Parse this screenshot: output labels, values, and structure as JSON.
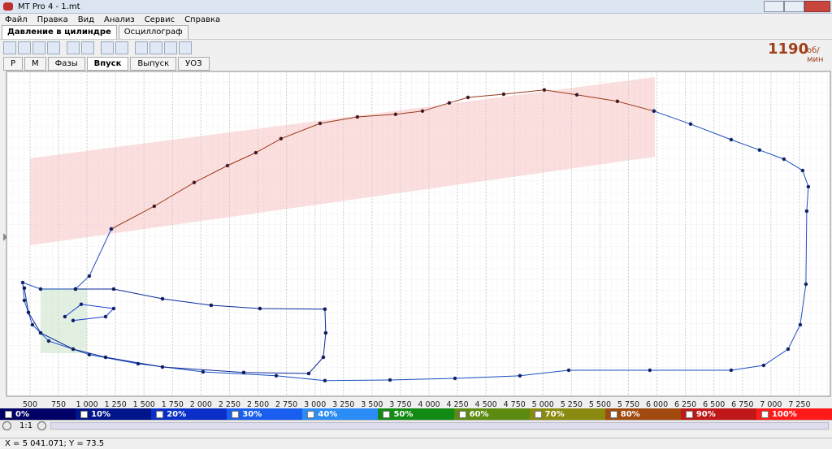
{
  "window": {
    "title": "MT Pro 4 - 1.mt"
  },
  "menu": [
    "Файл",
    "Правка",
    "Вид",
    "Анализ",
    "Сервис",
    "Справка"
  ],
  "tabs": [
    "Давление в цилиндре",
    "Осциллограф"
  ],
  "rpm": {
    "value": "1190",
    "unit": "об/мин"
  },
  "subtabs": [
    "P",
    "M",
    "Фазы",
    "Впуск",
    "Выпуск",
    "УОЗ"
  ],
  "legend": [
    {
      "label": "0%",
      "color": "#000066"
    },
    {
      "label": "10%",
      "color": "#00158a"
    },
    {
      "label": "20%",
      "color": "#0a2fc8"
    },
    {
      "label": "30%",
      "color": "#1a5ef0"
    },
    {
      "label": "40%",
      "color": "#2b8cf5"
    },
    {
      "label": "50%",
      "color": "#138a13"
    },
    {
      "label": "60%",
      "color": "#5d8a10"
    },
    {
      "label": "70%",
      "color": "#8a8a10"
    },
    {
      "label": "80%",
      "color": "#a04a10"
    },
    {
      "label": "90%",
      "color": "#c01818"
    },
    {
      "label": "100%",
      "color": "#ff1a1a"
    }
  ],
  "zoom": "1:1",
  "status": "X = 5 041.071; Y = 73.5",
  "chart_data": {
    "type": "line",
    "xlim": [
      300,
      7500
    ],
    "ylim": [
      0,
      100
    ],
    "xticks": [
      500,
      750,
      {
        "value": 1000,
        "label": "1 000"
      },
      {
        "value": 1250,
        "label": "1 250"
      },
      {
        "value": 1500,
        "label": "1 500"
      },
      {
        "value": 1750,
        "label": "1 750"
      },
      {
        "value": 2000,
        "label": "2 000"
      },
      {
        "value": 2250,
        "label": "2 250"
      },
      {
        "value": 2500,
        "label": "2 500"
      },
      {
        "value": 2750,
        "label": "2 750"
      },
      {
        "value": 3000,
        "label": "3 000"
      },
      {
        "value": 3250,
        "label": "3 250"
      },
      {
        "value": 3500,
        "label": "3 500"
      },
      {
        "value": 3750,
        "label": "3 750"
      },
      {
        "value": 4000,
        "label": "4 000"
      },
      {
        "value": 4250,
        "label": "4 250"
      },
      {
        "value": 4500,
        "label": "4 500"
      },
      {
        "value": 4750,
        "label": "4 750"
      },
      {
        "value": 5000,
        "label": "5 000"
      },
      {
        "value": 5250,
        "label": "5 250"
      },
      {
        "value": 5500,
        "label": "5 500"
      },
      {
        "value": 5750,
        "label": "5 750"
      },
      {
        "value": 6000,
        "label": "6 000"
      },
      {
        "value": 6250,
        "label": "6 250"
      },
      {
        "value": 6500,
        "label": "6 500"
      },
      {
        "value": 6750,
        "label": "6 750"
      },
      {
        "value": 7000,
        "label": "7 000"
      },
      {
        "value": 7250,
        "label": "7 250"
      }
    ],
    "grid": true,
    "series": [
      {
        "color": "#9a3a1a",
        "x": [
          1213,
          1590,
          1940,
          2232,
          2481,
          2702,
          3045,
          3372,
          3707,
          3943,
          4178,
          4342,
          4655,
          5012,
          5297,
          5653,
          5974
        ],
        "values": [
          51.5,
          58.5,
          65.8,
          71,
          75,
          79.3,
          84,
          86,
          86.8,
          87.8,
          90.3,
          92,
          93,
          94.3,
          92.8,
          90.8,
          87.8
        ]
      },
      {
        "color": "#1a4fc0",
        "x": [
          5974,
          6295,
          6651,
          6900,
          7114,
          7278,
          7328,
          7314,
          7307,
          7257,
          7150,
          6936,
          6651,
          5938,
          5226,
          4798,
          4228,
          3658,
          3087,
          2660,
          2018,
          1448,
          1020,
          664,
          521,
          450,
          436,
          593,
          899,
          1020,
          1213
        ],
        "values": [
          87.8,
          83.8,
          79,
          75.8,
          73,
          69.5,
          64.5,
          57,
          34.5,
          22,
          14.5,
          9.5,
          8,
          8,
          8,
          6.3,
          5.5,
          5,
          4.8,
          6.3,
          7.5,
          10,
          12.8,
          17,
          22,
          29.5,
          35,
          33,
          33,
          37,
          51.5
        ]
      },
      {
        "color": "#0a2a9a",
        "x": [
          899,
          1234,
          1662,
          2089,
          2517,
          3087,
          3094,
          3073,
          2945,
          2375,
          1662,
          1163,
          878,
          593,
          486,
          450
        ],
        "values": [
          33,
          33,
          30,
          28,
          27,
          26.8,
          19.5,
          12,
          7,
          7.3,
          9,
          12,
          14.5,
          19.5,
          25.8,
          33.3
        ]
      },
      {
        "color": "#1a3fd0",
        "x": [
          806,
          949,
          1234,
          1163,
          878
        ],
        "values": [
          24.5,
          28.3,
          27,
          24.5,
          23.3
        ]
      }
    ]
  }
}
